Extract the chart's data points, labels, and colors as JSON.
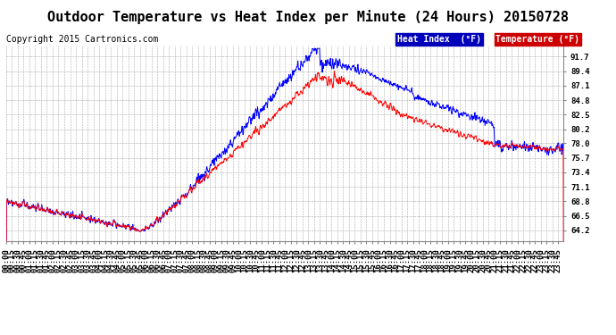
{
  "title": "Outdoor Temperature vs Heat Index per Minute (24 Hours) 20150728",
  "copyright": "Copyright 2015 Cartronics.com",
  "ylabel_right_ticks": [
    64.2,
    66.5,
    68.8,
    71.1,
    73.4,
    75.7,
    78.0,
    80.2,
    82.5,
    84.8,
    87.1,
    89.4,
    91.7
  ],
  "ylim": [
    62.5,
    93.5
  ],
  "heat_index_color": "#0000ff",
  "temperature_color": "#ff0000",
  "heat_index_label": "Heat Index  (°F)",
  "temperature_label": "Temperature (°F)",
  "legend_heat_bg": "#0000bb",
  "legend_temp_bg": "#cc0000",
  "bg_color": "#ffffff",
  "grid_color": "#aaaaaa",
  "title_fontsize": 11,
  "copyright_fontsize": 7,
  "tick_fontsize": 6.5,
  "legend_fontsize": 7
}
